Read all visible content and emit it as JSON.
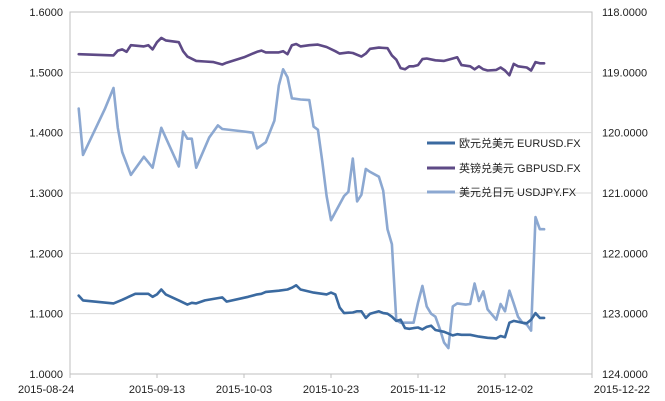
{
  "chart_data": {
    "type": "line",
    "title": "",
    "xlabel": "",
    "ylabel_left": "",
    "ylabel_right": "",
    "x_ticks": [
      "2015-08-24",
      "2015-09-13",
      "2015-10-03",
      "2015-10-23",
      "2015-11-12",
      "2015-12-02",
      "2015-12-22"
    ],
    "left_axis": {
      "ticks": [
        "1.0000",
        "1.1000",
        "1.2000",
        "1.3000",
        "1.4000",
        "1.5000",
        "1.6000"
      ],
      "range": [
        1.0,
        1.6
      ]
    },
    "right_axis": {
      "ticks": [
        "118.0000",
        "119.0000",
        "120.0000",
        "121.0000",
        "122.0000",
        "123.0000",
        "124.0000"
      ],
      "range": [
        118,
        124
      ],
      "inverted": true
    },
    "grid": "horizontal",
    "legend_position": "right",
    "series": [
      {
        "name": "欧元兑美元  EURUSD.FX",
        "axis": "left",
        "color": "#3b6aa0",
        "points": [
          [
            "2015-08-26",
            1.13
          ],
          [
            "2015-08-27",
            1.122
          ],
          [
            "2015-09-03",
            1.117
          ],
          [
            "2015-09-05",
            1.123
          ],
          [
            "2015-09-08",
            1.133
          ],
          [
            "2015-09-11",
            1.133
          ],
          [
            "2015-09-12",
            1.128
          ],
          [
            "2015-09-13",
            1.132
          ],
          [
            "2015-09-14",
            1.14
          ],
          [
            "2015-09-15",
            1.132
          ],
          [
            "2015-09-18",
            1.122
          ],
          [
            "2015-09-20",
            1.115
          ],
          [
            "2015-09-21",
            1.118
          ],
          [
            "2015-09-22",
            1.117
          ],
          [
            "2015-09-24",
            1.122
          ],
          [
            "2015-09-28",
            1.127
          ],
          [
            "2015-09-29",
            1.12
          ],
          [
            "2015-10-04",
            1.128
          ],
          [
            "2015-10-06",
            1.132
          ],
          [
            "2015-10-07",
            1.133
          ],
          [
            "2015-10-08",
            1.136
          ],
          [
            "2015-10-11",
            1.138
          ],
          [
            "2015-10-13",
            1.14
          ],
          [
            "2015-10-14",
            1.143
          ],
          [
            "2015-10-15",
            1.147
          ],
          [
            "2015-10-16",
            1.14
          ],
          [
            "2015-10-19",
            1.135
          ],
          [
            "2015-10-20",
            1.134
          ],
          [
            "2015-10-21",
            1.133
          ],
          [
            "2015-10-22",
            1.132
          ],
          [
            "2015-10-23",
            1.135
          ],
          [
            "2015-10-24",
            1.132
          ],
          [
            "2015-10-25",
            1.11
          ],
          [
            "2015-10-26",
            1.101
          ],
          [
            "2015-10-28",
            1.102
          ],
          [
            "2015-10-29",
            1.104
          ],
          [
            "2015-10-30",
            1.104
          ],
          [
            "2015-10-31",
            1.093
          ],
          [
            "2015-11-01",
            1.1
          ],
          [
            "2015-11-03",
            1.104
          ],
          [
            "2015-11-04",
            1.101
          ],
          [
            "2015-11-05",
            1.1
          ],
          [
            "2015-11-06",
            1.095
          ],
          [
            "2015-11-07",
            1.088
          ],
          [
            "2015-11-08",
            1.09
          ],
          [
            "2015-11-09",
            1.076
          ],
          [
            "2015-11-10",
            1.075
          ],
          [
            "2015-11-11",
            1.076
          ],
          [
            "2015-11-12",
            1.077
          ],
          [
            "2015-11-13",
            1.074
          ],
          [
            "2015-11-14",
            1.078
          ],
          [
            "2015-11-15",
            1.08
          ],
          [
            "2015-11-16",
            1.073
          ],
          [
            "2015-11-18",
            1.07
          ],
          [
            "2015-11-19",
            1.067
          ],
          [
            "2015-11-20",
            1.064
          ],
          [
            "2015-11-21",
            1.066
          ],
          [
            "2015-11-22",
            1.065
          ],
          [
            "2015-11-24",
            1.065
          ],
          [
            "2015-11-26",
            1.062
          ],
          [
            "2015-11-28",
            1.06
          ],
          [
            "2015-11-30",
            1.059
          ],
          [
            "2015-12-01",
            1.063
          ],
          [
            "2015-12-02",
            1.061
          ],
          [
            "2015-12-03",
            1.085
          ],
          [
            "2015-12-04",
            1.088
          ],
          [
            "2015-12-06",
            1.085
          ],
          [
            "2015-12-07",
            1.084
          ],
          [
            "2015-12-08",
            1.09
          ],
          [
            "2015-12-09",
            1.101
          ],
          [
            "2015-12-10",
            1.093
          ],
          [
            "2015-12-11",
            1.093
          ]
        ]
      },
      {
        "name": "英镑兑美元  GBPUSD.FX",
        "axis": "left",
        "color": "#5e4a86",
        "points": [
          [
            "2015-08-26",
            1.53
          ],
          [
            "2015-09-03",
            1.528
          ],
          [
            "2015-09-04",
            1.536
          ],
          [
            "2015-09-05",
            1.538
          ],
          [
            "2015-09-06",
            1.534
          ],
          [
            "2015-09-07",
            1.545
          ],
          [
            "2015-09-10",
            1.543
          ],
          [
            "2015-09-11",
            1.545
          ],
          [
            "2015-09-12",
            1.538
          ],
          [
            "2015-09-13",
            1.55
          ],
          [
            "2015-09-14",
            1.557
          ],
          [
            "2015-09-15",
            1.553
          ],
          [
            "2015-09-18",
            1.55
          ],
          [
            "2015-09-19",
            1.535
          ],
          [
            "2015-09-20",
            1.526
          ],
          [
            "2015-09-22",
            1.519
          ],
          [
            "2015-09-24",
            1.518
          ],
          [
            "2015-09-26",
            1.517
          ],
          [
            "2015-09-28",
            1.513
          ],
          [
            "2015-09-29",
            1.516
          ],
          [
            "2015-10-03",
            1.525
          ],
          [
            "2015-10-05",
            1.531
          ],
          [
            "2015-10-06",
            1.534
          ],
          [
            "2015-10-07",
            1.536
          ],
          [
            "2015-10-08",
            1.533
          ],
          [
            "2015-10-11",
            1.533
          ],
          [
            "2015-10-12",
            1.535
          ],
          [
            "2015-10-13",
            1.53
          ],
          [
            "2015-10-14",
            1.545
          ],
          [
            "2015-10-15",
            1.547
          ],
          [
            "2015-10-16",
            1.543
          ],
          [
            "2015-10-18",
            1.545
          ],
          [
            "2015-10-20",
            1.546
          ],
          [
            "2015-10-22",
            1.542
          ],
          [
            "2015-10-24",
            1.535
          ],
          [
            "2015-10-25",
            1.531
          ],
          [
            "2015-10-27",
            1.533
          ],
          [
            "2015-10-28",
            1.532
          ],
          [
            "2015-10-30",
            1.526
          ],
          [
            "2015-10-31",
            1.531
          ],
          [
            "2015-11-01",
            1.539
          ],
          [
            "2015-11-03",
            1.541
          ],
          [
            "2015-11-05",
            1.54
          ],
          [
            "2015-11-06",
            1.528
          ],
          [
            "2015-11-07",
            1.521
          ],
          [
            "2015-11-08",
            1.507
          ],
          [
            "2015-11-09",
            1.505
          ],
          [
            "2015-11-10",
            1.51
          ],
          [
            "2015-11-11",
            1.51
          ],
          [
            "2015-11-12",
            1.512
          ],
          [
            "2015-11-13",
            1.522
          ],
          [
            "2015-11-14",
            1.523
          ],
          [
            "2015-11-16",
            1.52
          ],
          [
            "2015-11-18",
            1.519
          ],
          [
            "2015-11-20",
            1.523
          ],
          [
            "2015-11-21",
            1.525
          ],
          [
            "2015-11-22",
            1.512
          ],
          [
            "2015-11-24",
            1.51
          ],
          [
            "2015-11-25",
            1.505
          ],
          [
            "2015-11-26",
            1.51
          ],
          [
            "2015-11-27",
            1.505
          ],
          [
            "2015-11-28",
            1.503
          ],
          [
            "2015-11-30",
            1.504
          ],
          [
            "2015-12-01",
            1.508
          ],
          [
            "2015-12-02",
            1.503
          ],
          [
            "2015-12-03",
            1.495
          ],
          [
            "2015-12-04",
            1.514
          ],
          [
            "2015-12-05",
            1.51
          ],
          [
            "2015-12-07",
            1.508
          ],
          [
            "2015-12-08",
            1.503
          ],
          [
            "2015-12-09",
            1.517
          ],
          [
            "2015-12-10",
            1.515
          ],
          [
            "2015-12-11",
            1.515
          ]
        ]
      },
      {
        "name": "美元兑日元  USDJPY.FX",
        "axis": "right",
        "color": "#8ca8d1",
        "points": [
          [
            "2015-08-26",
            119.6
          ],
          [
            "2015-08-27",
            120.37
          ],
          [
            "2015-09-01",
            119.61
          ],
          [
            "2015-09-03",
            119.26
          ],
          [
            "2015-09-04",
            119.92
          ],
          [
            "2015-09-05",
            120.32
          ],
          [
            "2015-09-07",
            120.7
          ],
          [
            "2015-09-10",
            120.4
          ],
          [
            "2015-09-12",
            120.58
          ],
          [
            "2015-09-14",
            119.92
          ],
          [
            "2015-09-18",
            120.56
          ],
          [
            "2015-09-19",
            119.98
          ],
          [
            "2015-09-20",
            120.1
          ],
          [
            "2015-09-21",
            120.1
          ],
          [
            "2015-09-22",
            120.58
          ],
          [
            "2015-09-25",
            120.08
          ],
          [
            "2015-09-27",
            119.88
          ],
          [
            "2015-09-28",
            119.94
          ],
          [
            "2015-10-03",
            119.98
          ],
          [
            "2015-10-05",
            120.0
          ],
          [
            "2015-10-06",
            120.26
          ],
          [
            "2015-10-08",
            120.16
          ],
          [
            "2015-10-10",
            119.8
          ],
          [
            "2015-10-11",
            119.22
          ],
          [
            "2015-10-12",
            118.95
          ],
          [
            "2015-10-13",
            119.08
          ],
          [
            "2015-10-14",
            119.43
          ],
          [
            "2015-10-16",
            119.45
          ],
          [
            "2015-10-18",
            119.46
          ],
          [
            "2015-10-19",
            119.9
          ],
          [
            "2015-10-20",
            119.95
          ],
          [
            "2015-10-21",
            120.48
          ],
          [
            "2015-10-22",
            121.05
          ],
          [
            "2015-10-23",
            121.45
          ],
          [
            "2015-10-24",
            121.32
          ],
          [
            "2015-10-26",
            121.05
          ],
          [
            "2015-10-27",
            120.98
          ],
          [
            "2015-10-28",
            120.43
          ],
          [
            "2015-10-29",
            121.14
          ],
          [
            "2015-10-30",
            121.03
          ],
          [
            "2015-10-31",
            120.6
          ],
          [
            "2015-11-01",
            120.65
          ],
          [
            "2015-11-03",
            120.73
          ],
          [
            "2015-11-04",
            120.96
          ],
          [
            "2015-11-05",
            121.6
          ],
          [
            "2015-11-06",
            121.85
          ],
          [
            "2015-11-07",
            123.11
          ],
          [
            "2015-11-08",
            123.15
          ],
          [
            "2015-11-10",
            123.15
          ],
          [
            "2015-11-11",
            123.15
          ],
          [
            "2015-11-12",
            122.82
          ],
          [
            "2015-11-13",
            122.54
          ],
          [
            "2015-11-14",
            122.88
          ],
          [
            "2015-11-15",
            123.0
          ],
          [
            "2015-11-16",
            123.05
          ],
          [
            "2015-11-17",
            123.25
          ],
          [
            "2015-11-18",
            123.48
          ],
          [
            "2015-11-19",
            123.57
          ],
          [
            "2015-11-20",
            122.88
          ],
          [
            "2015-11-21",
            122.83
          ],
          [
            "2015-11-23",
            122.85
          ],
          [
            "2015-11-24",
            122.84
          ],
          [
            "2015-11-25",
            122.5
          ],
          [
            "2015-11-26",
            122.79
          ],
          [
            "2015-11-27",
            122.63
          ],
          [
            "2015-11-28",
            122.93
          ],
          [
            "2015-11-30",
            123.1
          ],
          [
            "2015-12-01",
            122.84
          ],
          [
            "2015-12-02",
            122.96
          ],
          [
            "2015-12-03",
            122.62
          ],
          [
            "2015-12-04",
            122.83
          ],
          [
            "2015-12-05",
            123.05
          ],
          [
            "2015-12-06",
            123.15
          ],
          [
            "2015-12-07",
            123.18
          ],
          [
            "2015-12-08",
            123.28
          ],
          [
            "2015-12-09",
            121.4
          ],
          [
            "2015-12-10",
            121.6
          ],
          [
            "2015-12-11",
            121.6
          ]
        ]
      }
    ]
  }
}
